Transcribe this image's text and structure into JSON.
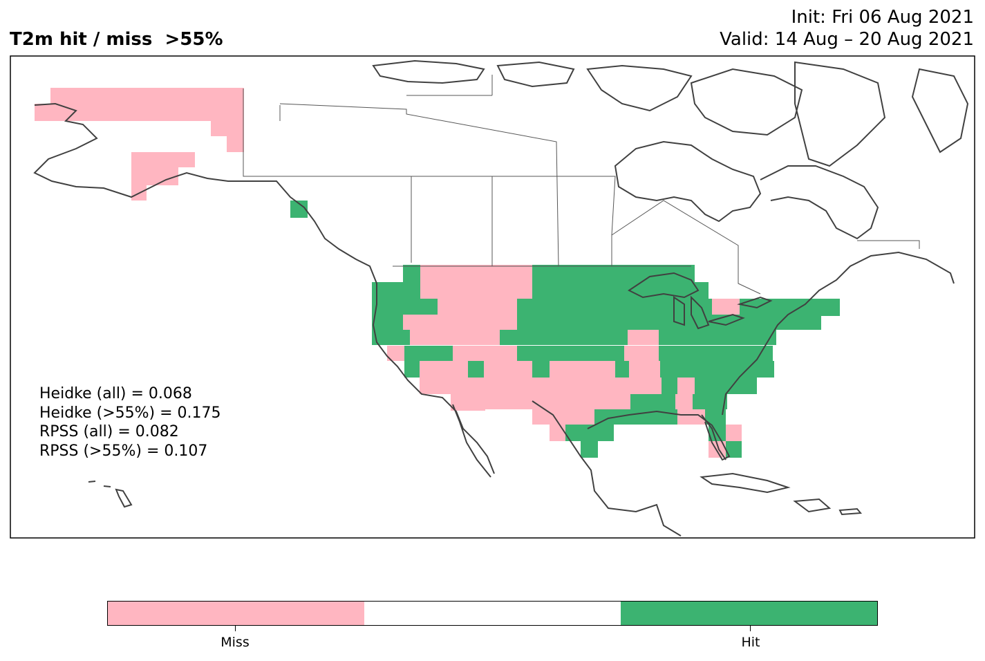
{
  "header": {
    "title": "T2m hit / miss  >55%",
    "init": "Init: Fri 06 Aug 2021",
    "valid": "Valid: 14 Aug – 20 Aug 2021"
  },
  "stats": [
    "Heidke (all) = 0.068",
    "Heidke (>55%) = 0.175",
    "RPSS (all) = 0.082",
    "RPSS (>55%) = 0.107"
  ],
  "colors": {
    "miss": "#ffb6c1",
    "neutral": "#ffffff",
    "hit": "#3cb371",
    "coastline": "#404040",
    "border": "#555555"
  },
  "colorbar": {
    "labels": [
      "Miss",
      "Hit"
    ]
  }
}
